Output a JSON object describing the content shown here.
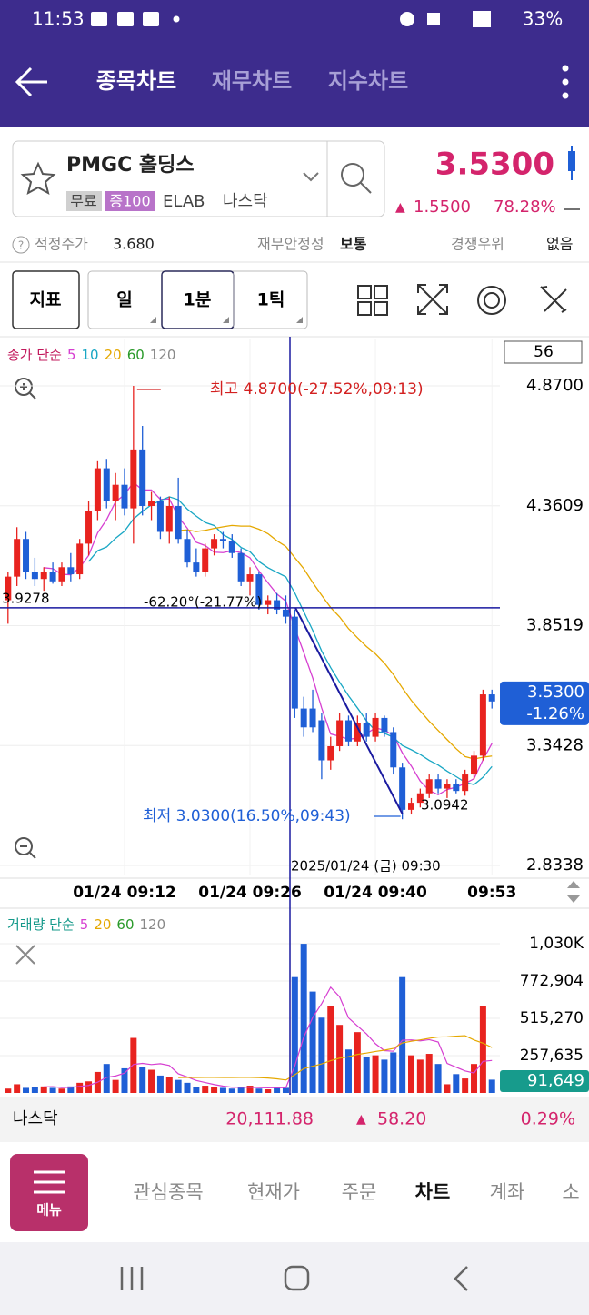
{
  "status_bar": {
    "time": "11:53",
    "battery": "33%"
  },
  "header": {
    "tabs": [
      "종목차트",
      "재무차트",
      "지수차트"
    ]
  },
  "stock": {
    "name": "PMGC 홀딩스",
    "badges": [
      "무료",
      "증100",
      "ELAB",
      "나스닥"
    ],
    "price": "3.5300",
    "change": "1.5500",
    "change_pct": "78.28%"
  },
  "info": {
    "fair_label": "적정주가",
    "fair_value": "3.680",
    "stability_label": "재무안정성",
    "stability_value": "보통",
    "moat_label": "경쟁우위",
    "moat_value": "없음"
  },
  "toolbar": {
    "indicator": "지표",
    "periods": [
      "일",
      "1분",
      "1틱"
    ]
  },
  "chart_data": {
    "type": "candlestick",
    "legend_title": "종가 단순",
    "ma_periods": [
      5,
      10,
      20,
      60,
      120
    ],
    "ma_colors": [
      "#d63fd1",
      "#19a7c4",
      "#e5a800",
      "#2a9a2a",
      "#888888"
    ],
    "count": "56",
    "ylim": [
      2.8338,
      4.87
    ],
    "yticks": [
      {
        "value": 4.87,
        "label": "4.8700"
      },
      4.3609,
      3.8519,
      3.3428,
      2.8338
    ],
    "categories": [
      null,
      null,
      null,
      null,
      null,
      null,
      null,
      null,
      null,
      null,
      null,
      null,
      null,
      "01/24 09:12",
      null,
      null,
      null,
      null,
      null,
      null,
      null,
      null,
      null,
      null,
      null,
      null,
      null,
      "01/24 09:26",
      null,
      null,
      null,
      null,
      null,
      null,
      null,
      null,
      null,
      null,
      null,
      null,
      null,
      "01/24 09:40",
      null,
      null,
      null,
      null,
      null,
      null,
      null,
      null,
      null,
      null,
      null,
      null,
      "09:53"
    ],
    "up_color": "#e8231f",
    "down_color": "#1f5fd6",
    "candles": [
      [
        3.96,
        4.08,
        3.86,
        4.06
      ],
      [
        4.06,
        4.27,
        4.02,
        4.22
      ],
      [
        4.22,
        4.25,
        4.05,
        4.08
      ],
      [
        4.08,
        4.14,
        4.02,
        4.05
      ],
      [
        4.05,
        4.1,
        4.0,
        4.08
      ],
      [
        4.08,
        4.12,
        4.03,
        4.04
      ],
      [
        4.04,
        4.12,
        4.02,
        4.1
      ],
      [
        4.1,
        4.16,
        4.04,
        4.07
      ],
      [
        4.07,
        4.22,
        4.05,
        4.2
      ],
      [
        4.2,
        4.38,
        4.15,
        4.34
      ],
      [
        4.34,
        4.55,
        4.3,
        4.52
      ],
      [
        4.52,
        4.56,
        4.35,
        4.38
      ],
      [
        4.38,
        4.5,
        4.3,
        4.45
      ],
      [
        4.45,
        4.52,
        4.32,
        4.35
      ],
      [
        4.35,
        4.87,
        4.2,
        4.6
      ],
      [
        4.6,
        4.7,
        4.32,
        4.36
      ],
      [
        4.36,
        4.42,
        4.3,
        4.38
      ],
      [
        4.38,
        4.4,
        4.22,
        4.25
      ],
      [
        4.25,
        4.4,
        4.2,
        4.36
      ],
      [
        4.36,
        4.48,
        4.2,
        4.22
      ],
      [
        4.22,
        4.26,
        4.1,
        4.12
      ],
      [
        4.12,
        4.18,
        4.06,
        4.08
      ],
      [
        4.08,
        4.2,
        4.06,
        4.18
      ],
      [
        4.18,
        4.24,
        4.15,
        4.22
      ],
      [
        4.22,
        4.25,
        4.18,
        4.21
      ],
      [
        4.21,
        4.24,
        4.14,
        4.16
      ],
      [
        4.16,
        4.18,
        4.02,
        4.04
      ],
      [
        4.04,
        4.1,
        3.98,
        4.07
      ],
      [
        4.07,
        4.08,
        3.92,
        3.94
      ],
      [
        3.94,
        3.98,
        3.9,
        3.96
      ],
      [
        3.96,
        3.99,
        3.9,
        3.92
      ],
      [
        3.92,
        3.98,
        3.86,
        3.89
      ],
      [
        3.89,
        3.92,
        3.46,
        3.5
      ],
      [
        3.5,
        3.55,
        3.38,
        3.42
      ],
      [
        3.5,
        3.58,
        3.4,
        3.42
      ],
      [
        3.45,
        3.48,
        3.2,
        3.28
      ],
      [
        3.28,
        3.38,
        3.24,
        3.34
      ],
      [
        3.34,
        3.48,
        3.32,
        3.45
      ],
      [
        3.45,
        3.47,
        3.34,
        3.36
      ],
      [
        3.36,
        3.47,
        3.34,
        3.44
      ],
      [
        3.44,
        3.48,
        3.36,
        3.38
      ],
      [
        3.38,
        3.48,
        3.36,
        3.46
      ],
      [
        3.46,
        3.47,
        3.38,
        3.4
      ],
      [
        3.4,
        3.42,
        3.22,
        3.25
      ],
      [
        3.25,
        3.27,
        3.03,
        3.07
      ],
      [
        3.07,
        3.12,
        3.05,
        3.1
      ],
      [
        3.1,
        3.16,
        3.08,
        3.14
      ],
      [
        3.14,
        3.22,
        3.12,
        3.2
      ],
      [
        3.2,
        3.22,
        3.14,
        3.16
      ],
      [
        3.16,
        3.2,
        3.12,
        3.18
      ],
      [
        3.18,
        3.2,
        3.14,
        3.15
      ],
      [
        3.15,
        3.24,
        3.13,
        3.22
      ],
      [
        3.22,
        3.32,
        3.2,
        3.3
      ],
      [
        3.3,
        3.58,
        3.28,
        3.56
      ],
      [
        3.56,
        3.58,
        3.5,
        3.53
      ]
    ],
    "current_label": "3.5300",
    "current_change": "-1.26%",
    "crosshair": {
      "price": 3.9278,
      "price_label": "3.9278",
      "time_label": "2025/01/24 (금) 09:30"
    },
    "annotations": {
      "high": "최고 4.8700(-27.52%,09:13)",
      "low": "최저 3.0300(16.50%,09:43)",
      "trend": "-62.20°(-21.77%)",
      "trend_end": "3.0942"
    },
    "volume": {
      "legend_title": "거래량 단순",
      "ma_periods": [
        5,
        20,
        60,
        120
      ],
      "ma_colors": [
        "#d63fd1",
        "#e5a800",
        "#2a9a2a",
        "#888888"
      ],
      "ylim": [
        0,
        1030540
      ],
      "yticks": [
        {
          "value": 1030540,
          "label": "1,030K"
        },
        {
          "value": 772904,
          "label": "772,904"
        },
        {
          "value": 515270,
          "label": "515,270"
        },
        {
          "value": 257635,
          "label": "257,635"
        }
      ],
      "values": [
        30000,
        60000,
        35000,
        40000,
        45000,
        35000,
        30000,
        45000,
        70000,
        80000,
        145000,
        200000,
        90000,
        170000,
        380000,
        180000,
        160000,
        120000,
        110000,
        90000,
        70000,
        40000,
        50000,
        40000,
        35000,
        30000,
        40000,
        50000,
        30000,
        25000,
        40000,
        35000,
        800000,
        1030000,
        700000,
        520000,
        600000,
        470000,
        300000,
        420000,
        250000,
        260000,
        230000,
        280000,
        800000,
        260000,
        230000,
        270000,
        200000,
        60000,
        130000,
        100000,
        200000,
        600000,
        91649
      ],
      "current_label": "91,649"
    }
  },
  "index_bar": {
    "name": "나스닥",
    "value": "20,111.88",
    "change": "58.20",
    "change_pct": "0.29%"
  },
  "nav": {
    "menu": "메뉴",
    "tabs": [
      "관심종목",
      "현재가",
      "주문",
      "차트",
      "계좌",
      "소"
    ]
  }
}
